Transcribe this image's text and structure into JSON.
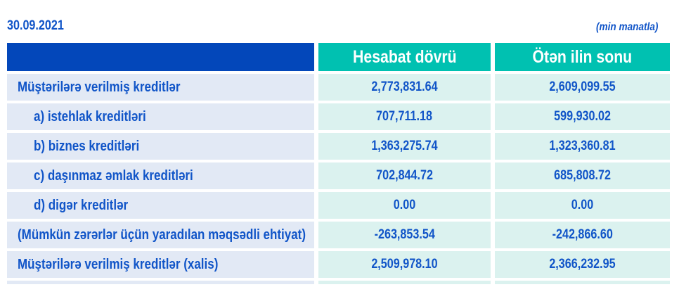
{
  "page": {
    "date": "30.09.2021",
    "unit_note": "(min manatla)"
  },
  "table": {
    "columns": [
      "Hesabat dövrü",
      "Ötən ilin sonu"
    ],
    "rows": [
      {
        "label": "Müştərilərə verilmiş kreditlər",
        "current": "2,773,831.64",
        "previous": "2,609,099.55"
      },
      {
        "label": "a) istehlak kreditləri",
        "current": "707,711.18",
        "previous": "599,930.02"
      },
      {
        "label": "b) biznes kreditləri",
        "current": "1,363,275.74",
        "previous": "1,323,360.81"
      },
      {
        "label": "c) daşınmaz əmlak kreditləri",
        "current": "702,844.72",
        "previous": "685,808.72"
      },
      {
        "label": "d) digər kreditlər",
        "current": "0.00",
        "previous": "0.00"
      },
      {
        "label": "(Mümkün zərərlər üçün yaradılan məqsədli ehtiyat)",
        "current": "-263,853.54",
        "previous": "-242,866.60"
      },
      {
        "label": "Müştərilərə verilmiş kreditlər (xalis)",
        "current": "2,509,978.10",
        "previous": "2,366,232.95"
      }
    ]
  },
  "colors": {
    "header_blue": "#0347BA",
    "teal": "#00C1B1",
    "label_bg": "#E2E9F5",
    "value_bg": "#DBF2EF",
    "text_blue": "#1155C8"
  }
}
